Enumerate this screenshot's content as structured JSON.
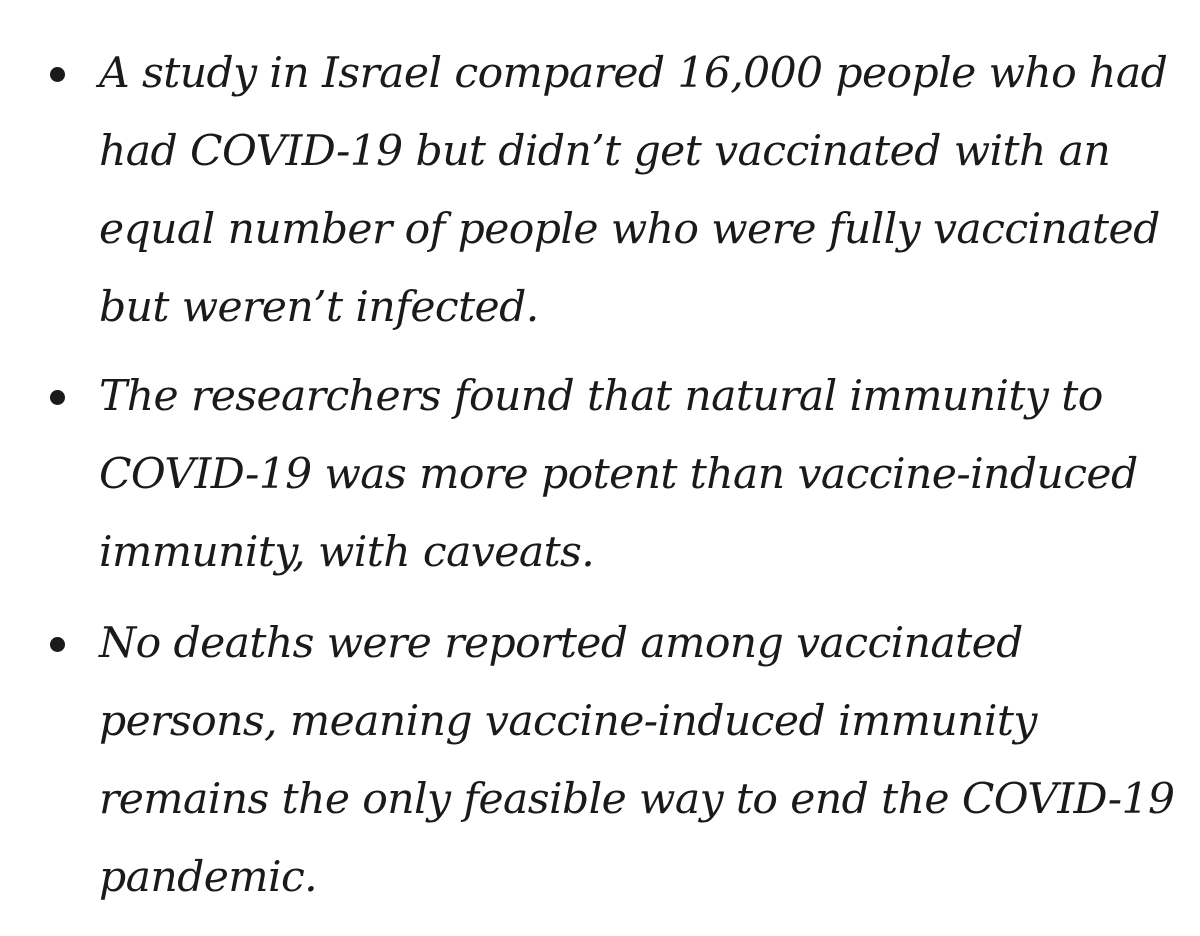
{
  "bullets": [
    {
      "lines": [
        "A study in Israel compared 16,000 people who had",
        "had COVID-19 but didn’t get vaccinated with an",
        "equal number of people who were fully vaccinated",
        "but weren’t infected."
      ]
    },
    {
      "lines": [
        "The researchers found that natural immunity to",
        "COVID-19 was more potent than vaccine-induced",
        "immunity, with caveats."
      ]
    },
    {
      "lines": [
        "No deaths were reported among vaccinated",
        "persons, meaning vaccine-induced immunity",
        "remains the only feasible way to end the COVID-19",
        "pandemic."
      ]
    }
  ],
  "colors": {
    "text": "#1a1a1a",
    "background": "#ffffff"
  }
}
